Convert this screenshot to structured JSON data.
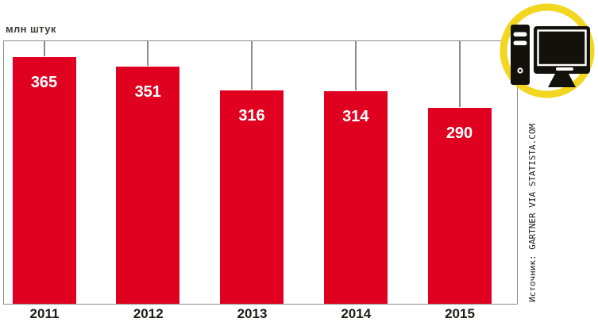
{
  "title": "млн штук",
  "source_label": "Источник: GARTNER VIA STATISTA.COM",
  "icon": {
    "name": "desktop-computer-icon",
    "style": "black computer tower and monitor inside yellow ring"
  },
  "colors": {
    "bar": "#e00020",
    "ring_yellow": "#f2d620",
    "line_gray": "#8a8a8a",
    "title_text": "#3d3d3b",
    "axis_text": "#1d1d1b",
    "value_label_text": "#ffffff",
    "icon_black": "#13110c"
  },
  "chart_data": {
    "type": "bar",
    "categories": [
      "2011",
      "2012",
      "2013",
      "2014",
      "2015"
    ],
    "values": [
      365,
      351,
      316,
      314,
      290
    ],
    "title": "млн штук",
    "xlabel": "",
    "ylabel": "млн штук",
    "ylim": [
      0,
      390
    ],
    "grid": false,
    "legend": "none",
    "bar_color": "#e00020",
    "value_labels_shown": true,
    "stems_from_top_frame": true
  }
}
